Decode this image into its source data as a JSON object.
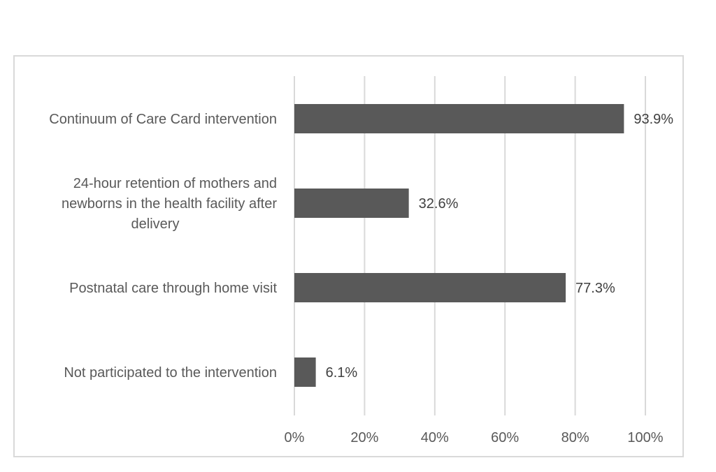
{
  "chart_data": {
    "type": "bar",
    "orientation": "horizontal",
    "categories": [
      [
        "Continuum of Care Card intervention"
      ],
      [
        "24-hour retention of mothers and",
        "newborns in the health facility after",
        "delivery"
      ],
      [
        "Postnatal care through home visit"
      ],
      [
        "Not participated to the intervention"
      ]
    ],
    "values": [
      93.9,
      32.6,
      77.3,
      6.1
    ],
    "data_labels": [
      "93.9%",
      "32.6%",
      "77.3%",
      "6.1%"
    ],
    "xlim": [
      0,
      100
    ],
    "x_ticks": [
      0,
      20,
      40,
      60,
      80,
      100
    ],
    "x_tick_labels": [
      "0%",
      "20%",
      "40%",
      "60%",
      "80%",
      "100%"
    ],
    "grid": "vertical",
    "legend": "none",
    "bar_color": "#595959",
    "grid_color": "#d9d9d9",
    "frame_color": "#d9d9d9"
  }
}
